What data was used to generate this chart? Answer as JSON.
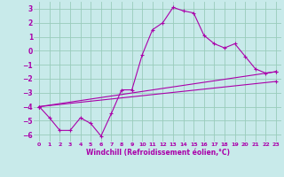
{
  "xlabel": "Windchill (Refroidissement éolien,°C)",
  "background_color": "#c8eaea",
  "grid_color": "#99ccbb",
  "line_color": "#aa00aa",
  "xlim": [
    -0.5,
    23.5
  ],
  "ylim": [
    -6.5,
    3.5
  ],
  "yticks": [
    -6,
    -5,
    -4,
    -3,
    -2,
    -1,
    0,
    1,
    2,
    3
  ],
  "xticks": [
    0,
    1,
    2,
    3,
    4,
    5,
    6,
    7,
    8,
    9,
    10,
    11,
    12,
    13,
    14,
    15,
    16,
    17,
    18,
    19,
    20,
    21,
    22,
    23
  ],
  "series1_x": [
    0,
    1,
    2,
    3,
    4,
    5,
    6,
    7,
    8,
    9,
    10,
    11,
    12,
    13,
    14,
    15,
    16,
    17,
    18,
    19,
    20,
    21,
    22,
    23
  ],
  "series1_y": [
    -4.0,
    -4.8,
    -5.7,
    -5.7,
    -4.8,
    -5.2,
    -6.1,
    -4.5,
    -2.8,
    -2.8,
    -0.3,
    1.5,
    2.0,
    3.1,
    2.85,
    2.7,
    1.1,
    0.5,
    0.2,
    0.5,
    -0.4,
    -1.3,
    -1.6,
    -1.5
  ],
  "series2_x": [
    0,
    23
  ],
  "series2_y": [
    -4.0,
    -1.5
  ],
  "series3_x": [
    0,
    23
  ],
  "series3_y": [
    -4.0,
    -2.2
  ],
  "figsize": [
    3.2,
    2.0
  ],
  "dpi": 100
}
